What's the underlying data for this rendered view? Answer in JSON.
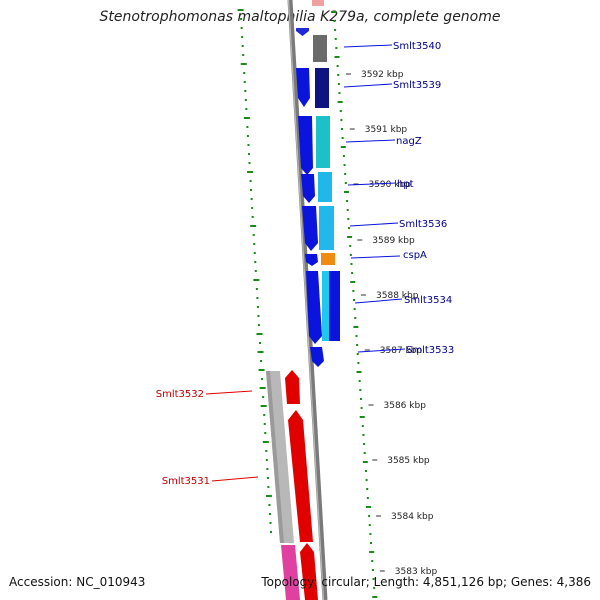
{
  "title": "Stenotrophomonas maltophilia K279a, complete genome",
  "footer": {
    "accession": "Accession: NC_010943",
    "summary": "Topology: circular; Length: 4,851,126 bp; Genes: 4,386"
  },
  "colors": {
    "forward_gene": "#0a14dc",
    "reverse_gene": "#e00000",
    "forward_label": "#00008b",
    "reverse_label": "#c00000",
    "backbone": "#7a7a7a",
    "gc_skew": "#1a8a1a"
  },
  "kbp_ticks": [
    "3592 kbp",
    "3591 kbp",
    "3590 kbp",
    "3589 kbp",
    "3588 kbp",
    "3587 kbp",
    "3586 kbp",
    "3585 kbp",
    "3584 kbp",
    "3583 kbp"
  ],
  "forward_genes": [
    {
      "name": "Smlt3540"
    },
    {
      "name": "Smlt3539"
    },
    {
      "name": "nagZ"
    },
    {
      "name": "hpt"
    },
    {
      "name": "Smlt3536"
    },
    {
      "name": "cspA"
    },
    {
      "name": "Smlt3534"
    },
    {
      "name": "Smlt3533"
    }
  ],
  "reverse_genes": [
    {
      "name": "Smlt3532"
    },
    {
      "name": "Smlt3531"
    }
  ]
}
